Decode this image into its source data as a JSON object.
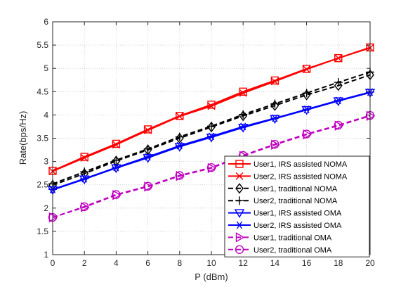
{
  "chart_data": {
    "type": "line",
    "xlabel": "P (dBm)",
    "ylabel": "Rate(bps/Hz)",
    "xlim": [
      0,
      20
    ],
    "ylim": [
      1,
      6
    ],
    "xticks": [
      0,
      2,
      4,
      6,
      8,
      10,
      12,
      14,
      16,
      18,
      20
    ],
    "yticks": [
      1,
      1.5,
      2,
      2.5,
      3,
      3.5,
      4,
      4.5,
      5,
      5.5,
      6
    ],
    "grid": true,
    "legend_position": "bottom-right",
    "x": [
      0,
      2,
      4,
      6,
      8,
      10,
      12,
      14,
      16,
      18,
      20
    ],
    "series": [
      {
        "name": "User1, IRS assisted NOMA",
        "color": "#ff0000",
        "dash": "solid",
        "marker": "square",
        "values": [
          2.8,
          3.1,
          3.38,
          3.69,
          3.98,
          4.22,
          4.5,
          4.74,
          4.99,
          5.22,
          5.45
        ]
      },
      {
        "name": "User2, IRS assisted NOMA",
        "color": "#ff0000",
        "dash": "solid",
        "marker": "x",
        "values": [
          2.79,
          3.08,
          3.36,
          3.67,
          3.97,
          4.19,
          4.47,
          4.72,
          4.98,
          5.22,
          5.44
        ]
      },
      {
        "name": "User1, traditional NOMA",
        "color": "#000000",
        "dash": "dashed",
        "marker": "diamond",
        "values": [
          2.49,
          2.74,
          3.01,
          3.25,
          3.5,
          3.74,
          3.98,
          4.2,
          4.43,
          4.63,
          4.86
        ]
      },
      {
        "name": "User2, traditional NOMA",
        "color": "#000000",
        "dash": "dashed",
        "marker": "plus",
        "values": [
          2.52,
          2.78,
          3.03,
          3.27,
          3.53,
          3.76,
          4.01,
          4.24,
          4.47,
          4.7,
          4.92
        ]
      },
      {
        "name": "User1, IRS assisted OMA",
        "color": "#0000ff",
        "dash": "solid",
        "marker": "triangle-down",
        "values": [
          2.39,
          2.62,
          2.86,
          3.08,
          3.32,
          3.52,
          3.73,
          3.92,
          4.11,
          4.3,
          4.48
        ]
      },
      {
        "name": "User2, IRS assisted OMA",
        "color": "#0000ff",
        "dash": "solid",
        "marker": "asterisk",
        "values": [
          2.4,
          2.63,
          2.87,
          3.1,
          3.34,
          3.54,
          3.75,
          3.93,
          4.12,
          4.31,
          4.49
        ]
      },
      {
        "name": "User1, traditional OMA",
        "color": "#bf00bf",
        "dash": "dashed",
        "marker": "triangle-right",
        "values": [
          1.8,
          2.02,
          2.28,
          2.46,
          2.69,
          2.86,
          3.12,
          3.36,
          3.58,
          3.77,
          3.98
        ]
      },
      {
        "name": "User2, traditional OMA",
        "color": "#bf00bf",
        "dash": "dashed",
        "marker": "circle",
        "values": [
          1.8,
          2.03,
          2.29,
          2.47,
          2.7,
          2.87,
          3.13,
          3.37,
          3.59,
          3.78,
          3.99
        ]
      }
    ]
  }
}
